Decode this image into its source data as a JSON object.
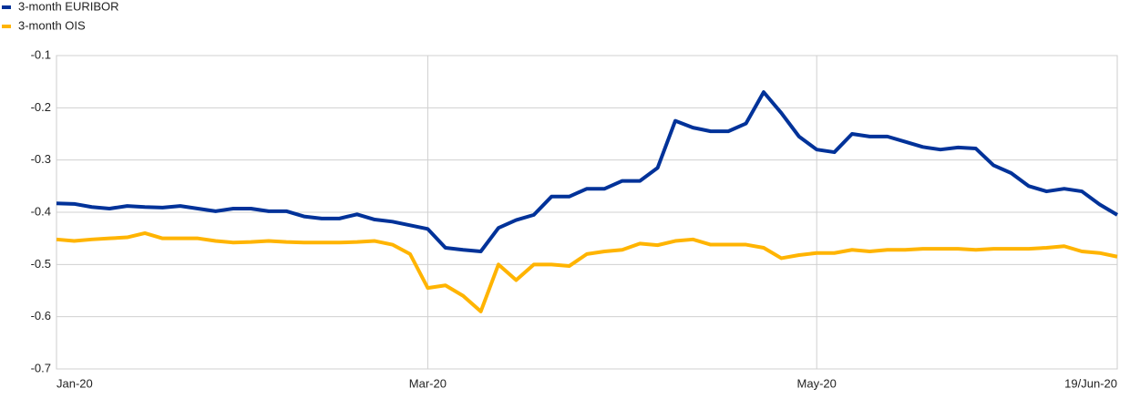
{
  "chart_data": {
    "type": "line",
    "categories": [
      "Jan-20",
      null,
      null,
      null,
      null,
      null,
      null,
      null,
      null,
      null,
      null,
      null,
      null,
      null,
      null,
      null,
      null,
      null,
      null,
      null,
      null,
      "Mar-20",
      null,
      null,
      null,
      null,
      null,
      null,
      null,
      null,
      null,
      null,
      null,
      null,
      null,
      null,
      null,
      null,
      null,
      null,
      null,
      null,
      null,
      "May-20",
      null,
      null,
      null,
      null,
      null,
      null,
      null,
      null,
      null,
      null,
      null,
      null,
      null,
      null,
      null,
      null,
      "19/Jun-20"
    ],
    "series": [
      {
        "name": "3-month EURIBOR",
        "color": "#003299",
        "values": [
          -0.383,
          -0.384,
          -0.39,
          -0.393,
          -0.388,
          -0.39,
          -0.391,
          -0.388,
          -0.393,
          -0.398,
          -0.393,
          -0.393,
          -0.398,
          -0.398,
          -0.408,
          -0.412,
          -0.412,
          -0.404,
          -0.414,
          -0.418,
          -0.425,
          -0.432,
          -0.468,
          -0.472,
          -0.475,
          -0.43,
          -0.415,
          -0.405,
          -0.37,
          -0.37,
          -0.355,
          -0.355,
          -0.34,
          -0.34,
          -0.315,
          -0.225,
          -0.238,
          -0.245,
          -0.245,
          -0.23,
          -0.17,
          -0.21,
          -0.255,
          -0.28,
          -0.285,
          -0.25,
          -0.255,
          -0.255,
          -0.265,
          -0.275,
          -0.28,
          -0.276,
          -0.278,
          -0.31,
          -0.325,
          -0.35,
          -0.36,
          -0.355,
          -0.36,
          -0.385,
          -0.405
        ]
      },
      {
        "name": "3-month OIS",
        "color": "#FFB400",
        "values": [
          -0.452,
          -0.455,
          -0.452,
          -0.45,
          -0.448,
          -0.44,
          -0.45,
          -0.45,
          -0.45,
          -0.455,
          -0.458,
          -0.457,
          -0.455,
          -0.457,
          -0.458,
          -0.458,
          -0.458,
          -0.457,
          -0.455,
          -0.462,
          -0.48,
          -0.545,
          -0.54,
          -0.56,
          -0.59,
          -0.5,
          -0.53,
          -0.5,
          -0.5,
          -0.503,
          -0.48,
          -0.475,
          -0.472,
          -0.46,
          -0.463,
          -0.455,
          -0.452,
          -0.462,
          -0.462,
          -0.462,
          -0.468,
          -0.488,
          -0.482,
          -0.478,
          -0.478,
          -0.472,
          -0.475,
          -0.472,
          -0.472,
          -0.47,
          -0.47,
          -0.47,
          -0.472,
          -0.47,
          -0.47,
          -0.47,
          -0.468,
          -0.465,
          -0.475,
          -0.478,
          -0.485
        ]
      }
    ],
    "ylim": [
      -0.7,
      -0.1
    ],
    "yticks": [
      -0.1,
      -0.2,
      -0.3,
      -0.4,
      -0.5,
      -0.6,
      -0.7
    ],
    "grid": true
  }
}
